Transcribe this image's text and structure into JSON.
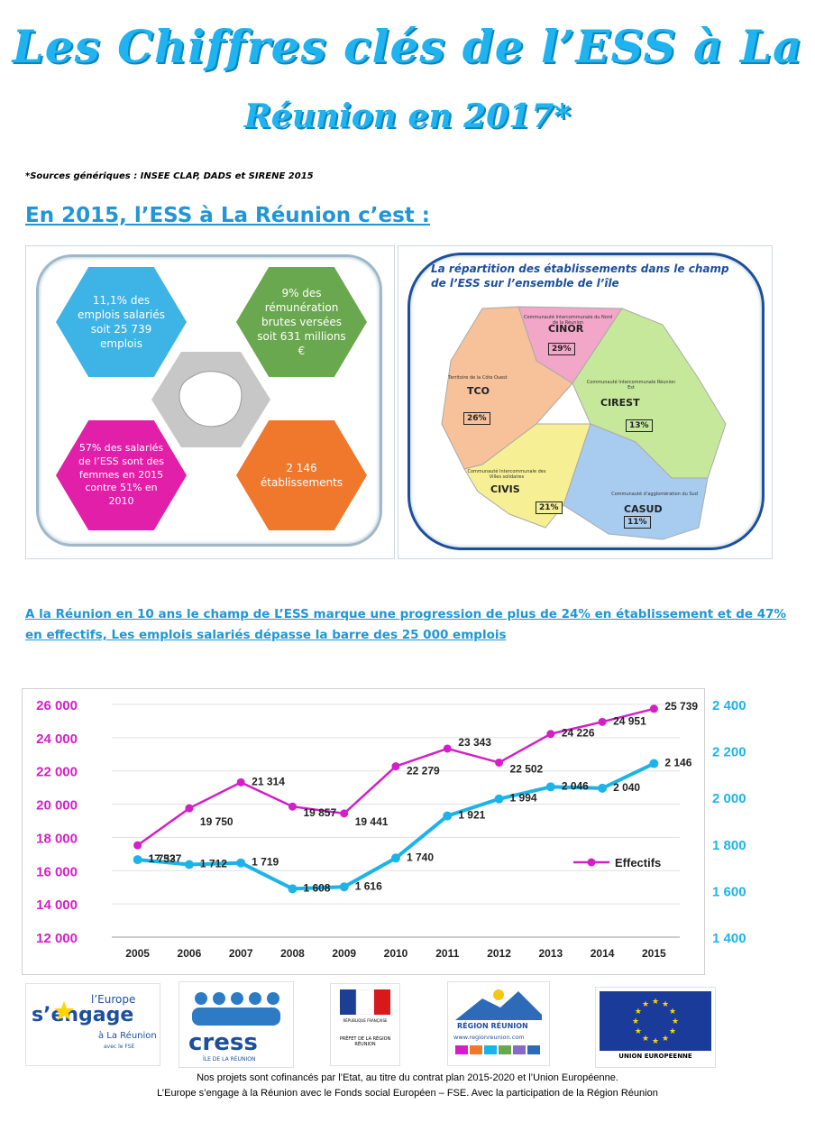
{
  "title_line1": "Les Chiffres clés de l’ESS à La",
  "title_line2": "Réunion en 2017*",
  "sources": "*Sources génériques : INSEE CLAP, DADS et SIRENE 2015",
  "section_heading": "En 2015, l’ESS à La Réunion c’est :",
  "key_figures": [
    {
      "text": "11,1% des emplois salariés soit 25 739 emplois",
      "color": "#3db3e6"
    },
    {
      "text": "9% des rémunération brutes versées soit 631 millions €",
      "color": "#6aa84f"
    },
    {
      "text": "57% des salariés de l’ESS sont des femmes en 2015 contre 51% en 2010",
      "color": "#e11fa8"
    },
    {
      "text": "2 146 établissements",
      "color": "#f0782c"
    }
  ],
  "map": {
    "title": "La répartition des établissements dans le champ de l’ESS sur l’ensemble de l’île",
    "zones": [
      {
        "name": "CINOR",
        "subtitle": "Communauté Intercommunale du Nord de la Réunion",
        "pct": "29%",
        "color": "#f2a6c8"
      },
      {
        "name": "TCO",
        "subtitle": "Territoire de la Côte Ouest",
        "pct": "26%",
        "color": "#f7c19a"
      },
      {
        "name": "CIREST",
        "subtitle": "Communauté Intercommunale Réunion Est",
        "pct": "13%",
        "color": "#c6e89a"
      },
      {
        "name": "CIVIS",
        "subtitle": "Communauté Intercommunale des Villes solidaires",
        "pct": "21%",
        "color": "#f6ef94"
      },
      {
        "name": "CASUD",
        "subtitle": "Communauté d’agglomération du Sud",
        "pct": "11%",
        "color": "#a8ccef"
      }
    ]
  },
  "progress_text": "A la Réunion en 10 ans le champ de L’ESS marque une progression de plus de 24% en établissement et de 47% en effectifs, Les emplois salariés dépasse la barre des 25 000 emplois",
  "chart_data": {
    "type": "line",
    "categories": [
      "2005",
      "2006",
      "2007",
      "2008",
      "2009",
      "2010",
      "2011",
      "2012",
      "2013",
      "2014",
      "2015"
    ],
    "series": [
      {
        "name": "Effectifs",
        "axis": "left",
        "color": "#d21fc8",
        "values": [
          17527,
          19750,
          21314,
          19857,
          19441,
          22279,
          23343,
          22502,
          24226,
          24951,
          25739
        ],
        "labels": [
          "17 527",
          "19 750",
          "21 314",
          "19 857",
          "19 441",
          "22 279",
          "23 343",
          "22 502",
          "24 226",
          "24 951",
          "25 739"
        ]
      },
      {
        "axis": "right",
        "color": "#1cb4e8",
        "values": [
          1733,
          1712,
          1719,
          1608,
          1616,
          1740,
          1921,
          1994,
          2046,
          2040,
          2146
        ],
        "labels": [
          "1 733",
          "1 712",
          "1 719",
          "1 608",
          "1 616",
          "1 740",
          "1 921",
          "1 994",
          "2 046",
          "2 040",
          "2 146"
        ]
      }
    ],
    "left_axis": {
      "ylim": [
        12000,
        26000
      ],
      "ticks": [
        "12 000",
        "14 000",
        "16 000",
        "18 000",
        "20 000",
        "22 000",
        "24 000",
        "26 000"
      ],
      "color": "#d21fc8"
    },
    "right_axis": {
      "ylim": [
        1400,
        2400
      ],
      "ticks": [
        "1 400",
        "1 600",
        "1 800",
        "2 000",
        "2 200",
        "2 400"
      ],
      "color": "#1cb4e8"
    },
    "grid": true,
    "legend": "right"
  },
  "logos": {
    "europe_top": "l’Europe",
    "europe_main": "s’engage",
    "europe_sub": "à La Réunion",
    "europe_fse": "avec le FSE",
    "cress": "cress",
    "cress_sub": "ÎLE DE LA RÉUNION",
    "prefet": "PRÉFET DE LA RÉGION RÉUNION",
    "republique": "RÉPUBLIQUE FRANÇAISE",
    "region": "RÉGION RÉUNION",
    "region_url": "www.regionreunion.com",
    "ue": "UNION EUROPEENNE"
  },
  "footer_line1": "Nos projets sont cofinancés par l’Etat, au titre du contrat plan 2015-2020 et l’Union Européenne.",
  "footer_line2": "L’Europe s’engage à la Réunion avec le Fonds social Européen – FSE. Avec la participation de la Région Réunion"
}
